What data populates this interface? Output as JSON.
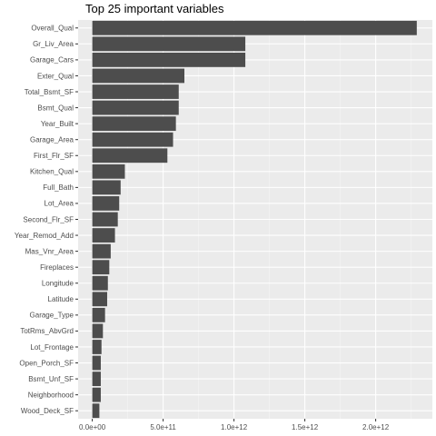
{
  "chart_data": {
    "type": "bar",
    "orientation": "horizontal",
    "title": "Top 25 important variables",
    "xlabel": "",
    "ylabel": "",
    "categories": [
      "Overall_Qual",
      "Gr_Liv_Area",
      "Garage_Cars",
      "Exter_Qual",
      "Total_Bsmt_SF",
      "Bsmt_Qual",
      "Year_Built",
      "Garage_Area",
      "First_Flr_SF",
      "Kitchen_Qual",
      "Full_Bath",
      "Lot_Area",
      "Second_Flr_SF",
      "Year_Remod_Add",
      "Mas_Vnr_Area",
      "Fireplaces",
      "Longitude",
      "Latitude",
      "Garage_Type",
      "TotRms_AbvGrd",
      "Lot_Frontage",
      "Open_Porch_SF",
      "Bsmt_Unf_SF",
      "Neighborhood",
      "Wood_Deck_SF"
    ],
    "values": [
      2290000000000.0,
      1080000000000.0,
      1080000000000.0,
      650000000000.0,
      610000000000.0,
      610000000000.0,
      590000000000.0,
      570000000000.0,
      530000000000.0,
      230000000000.0,
      200000000000.0,
      190000000000.0,
      180000000000.0,
      160000000000.0,
      130000000000.0,
      120000000000.0,
      110000000000.0,
      105000000000.0,
      90000000000.0,
      75000000000.0,
      65000000000.0,
      60000000000.0,
      60000000000.0,
      60000000000.0,
      50000000000.0
    ],
    "xlim": [
      -100000000000.0,
      2400000000000.0
    ],
    "xticks": [
      0,
      500000000000.0,
      1000000000000.0,
      1500000000000.0,
      2000000000000.0
    ],
    "xtick_labels": [
      "0.0e+00",
      "5.0e+11",
      "1.0e+12",
      "1.5e+12",
      "2.0e+12"
    ],
    "grid": true,
    "colors": {
      "bar": "#4d4d4d",
      "panel_background": "#ebebeb",
      "grid_major": "#ffffff",
      "grid_minor": "#f5f5f5",
      "axis_text": "#4d4d4d"
    }
  }
}
